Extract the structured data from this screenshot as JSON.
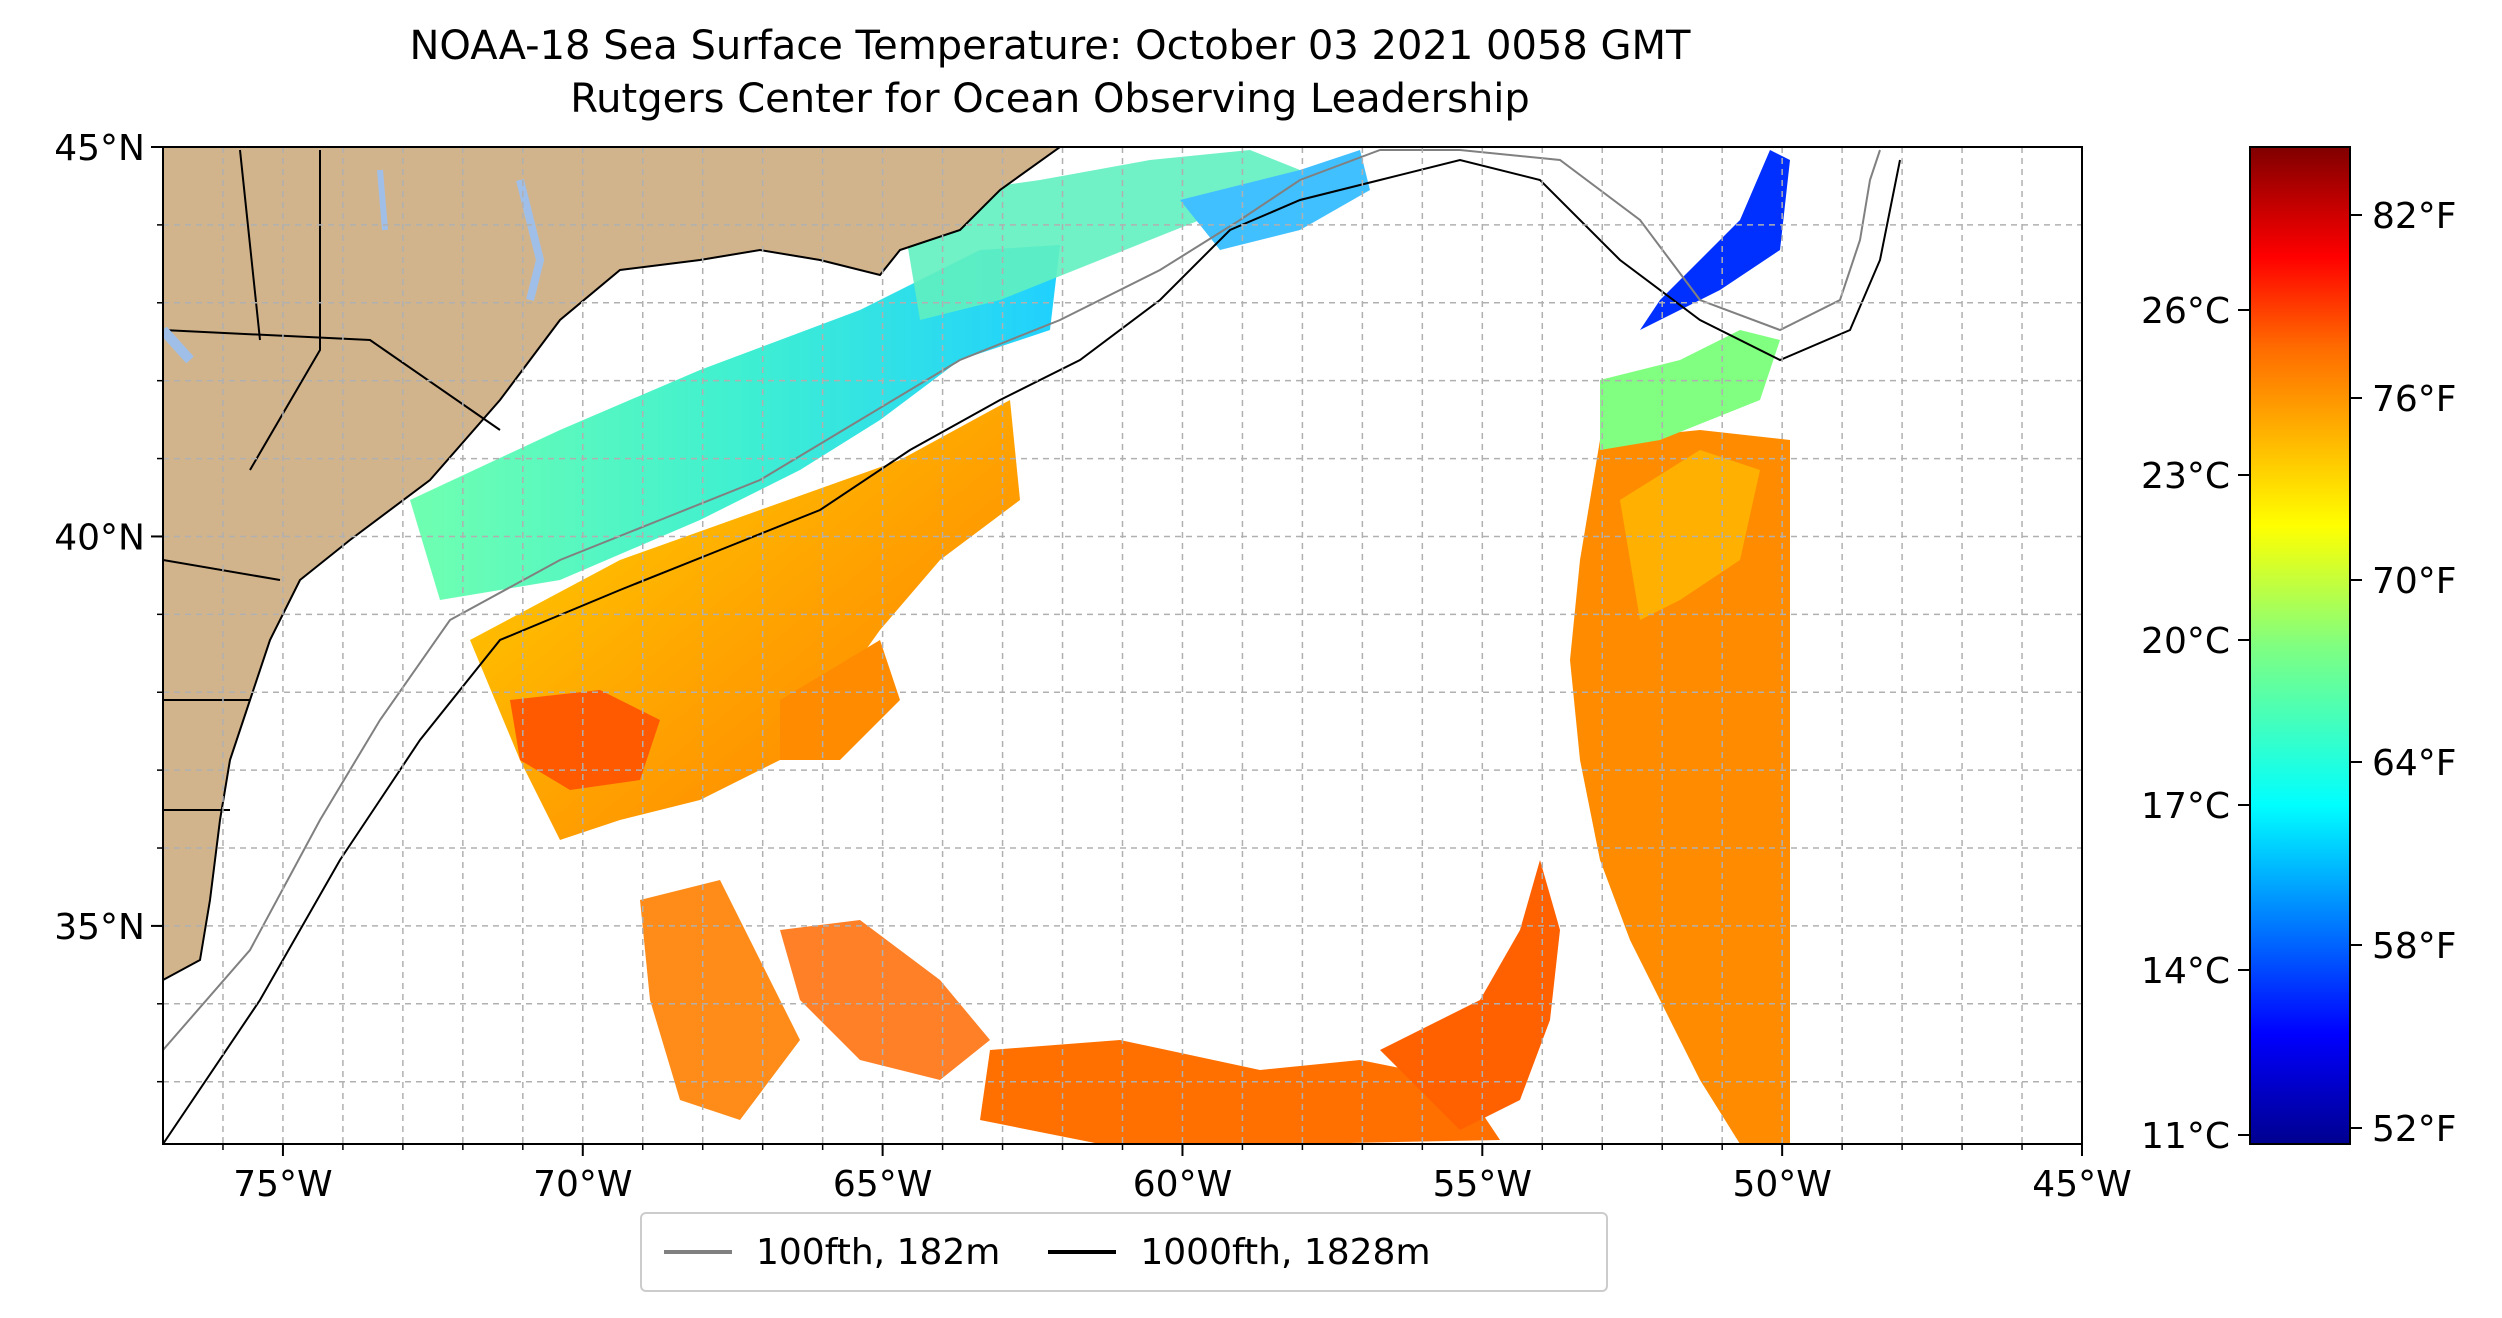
{
  "title": {
    "line1": "NOAA-18 Sea Surface Temperature: October 03 2021 0058 GMT",
    "line2": "Rutgers Center for Ocean Observing Leadership"
  },
  "map": {
    "lon_range": [
      -77,
      -45
    ],
    "lat_range": [
      32.2,
      45
    ],
    "lon_ticks": [
      "75°W",
      "70°W",
      "65°W",
      "60°W",
      "55°W",
      "50°W",
      "45°W"
    ],
    "lat_ticks": [
      "45°N",
      "40°N",
      "35°N"
    ],
    "gridlines": "dashed, every 1°",
    "land_color": "#d2b48c",
    "lake_color": "#9fbfe8",
    "no_data_color": "#ffffff"
  },
  "colorbar": {
    "colormap": "jet",
    "fahrenheit_ticks": [
      "82°F",
      "76°F",
      "70°F",
      "64°F",
      "58°F",
      "52°F"
    ],
    "celsius_ticks": [
      "26°C",
      "23°C",
      "20°C",
      "17°C",
      "14°C",
      "11°C"
    ],
    "colors": [
      "#800000",
      "#ff0000",
      "#ff8000",
      "#ffff00",
      "#80ff80",
      "#00ffff",
      "#0080ff",
      "#0000ff",
      "#00008f"
    ]
  },
  "legend": {
    "items": [
      {
        "label": "100fth, 182m",
        "color": "#808080"
      },
      {
        "label": "1000fth, 1828m",
        "color": "#000000"
      }
    ]
  }
}
